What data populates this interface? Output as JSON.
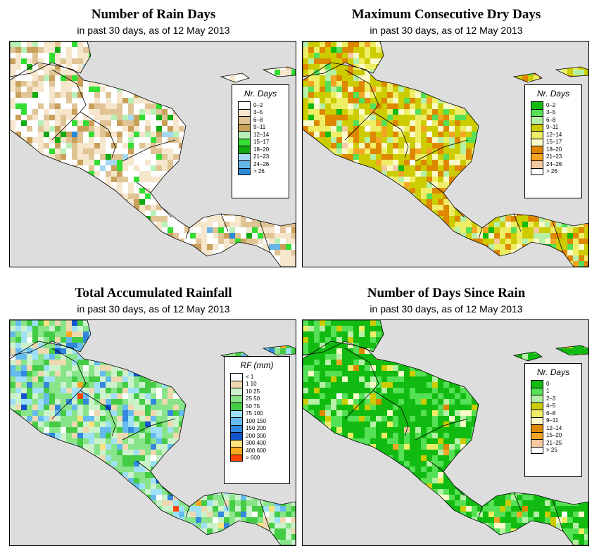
{
  "panels": [
    {
      "title": "Number of Rain Days",
      "subtitle": "in past 30 days, as of  12 May 2013",
      "legend_title": "Nr. Days",
      "legend": [
        {
          "label": "0–2",
          "color": "#ffffff"
        },
        {
          "label": "3–5",
          "color": "#f5e6cc"
        },
        {
          "label": "6–8",
          "color": "#e0c495"
        },
        {
          "label": "9–11",
          "color": "#c9a05a"
        },
        {
          "label": "12–14",
          "color": "#b7f0b7"
        },
        {
          "label": "15–17",
          "color": "#33dd33"
        },
        {
          "label": "18–20",
          "color": "#11aa11"
        },
        {
          "label": "21–23",
          "color": "#a6d8f2"
        },
        {
          "label": "24–26",
          "color": "#66b3e6"
        },
        {
          "label": "> 26",
          "color": "#2a8ad6"
        }
      ]
    },
    {
      "title": "Maximum Consecutive Dry Days",
      "subtitle": "in past 30 days, as of  12 May 2013",
      "legend_title": "Nr. Days",
      "legend": [
        {
          "label": "0–2",
          "color": "#11bb11"
        },
        {
          "label": "3–5",
          "color": "#55e055"
        },
        {
          "label": "6–8",
          "color": "#b6f0a6"
        },
        {
          "label": "9–11",
          "color": "#cccc00"
        },
        {
          "label": "12–14",
          "color": "#eeee66"
        },
        {
          "label": "15–17",
          "color": "#fafac8"
        },
        {
          "label": "18–20",
          "color": "#dd8800"
        },
        {
          "label": "21–23",
          "color": "#f5a524"
        },
        {
          "label": "24–26",
          "color": "#f5c8a0"
        },
        {
          "label": "> 26",
          "color": "#ffffff"
        }
      ]
    },
    {
      "title": "Total Accumulated Rainfall",
      "subtitle": "in past 30 days, as of  12 May 2013",
      "legend_title": "RF (mm)",
      "legend": [
        {
          "label": "< 1",
          "color": "#ffffff"
        },
        {
          "label": "1   10",
          "color": "#eed8b0"
        },
        {
          "label": "10   25",
          "color": "#ccf2cc"
        },
        {
          "label": "25   50",
          "color": "#88e488"
        },
        {
          "label": "50   75",
          "color": "#44cc44"
        },
        {
          "label": "75   100",
          "color": "#9ee0f5"
        },
        {
          "label": "100   150",
          "color": "#66bbee"
        },
        {
          "label": "150   200",
          "color": "#3388dd"
        },
        {
          "label": "200   300",
          "color": "#1155cc"
        },
        {
          "label": "300   400",
          "color": "#ffe27a"
        },
        {
          "label": "400   600",
          "color": "#ffaa22"
        },
        {
          "label": "> 600",
          "color": "#ff4400"
        }
      ]
    },
    {
      "title": "Number of Days Since Rain",
      "subtitle": "in past 30 days, as of  12 May 2013",
      "legend_title": "Nr. Days",
      "legend": [
        {
          "label": "0",
          "color": "#11bb11"
        },
        {
          "label": "1",
          "color": "#55e055"
        },
        {
          "label": "2–3",
          "color": "#b6f0a6"
        },
        {
          "label": "4–5",
          "color": "#cccc00"
        },
        {
          "label": "6–8",
          "color": "#eeee66"
        },
        {
          "label": "9–11",
          "color": "#fafac8"
        },
        {
          "label": "12–14",
          "color": "#dd8800"
        },
        {
          "label": "15–20",
          "color": "#f5a524"
        },
        {
          "label": "21–25",
          "color": "#f5c8a0"
        },
        {
          "label": "> 25",
          "color": "#ffffff"
        }
      ]
    }
  ]
}
